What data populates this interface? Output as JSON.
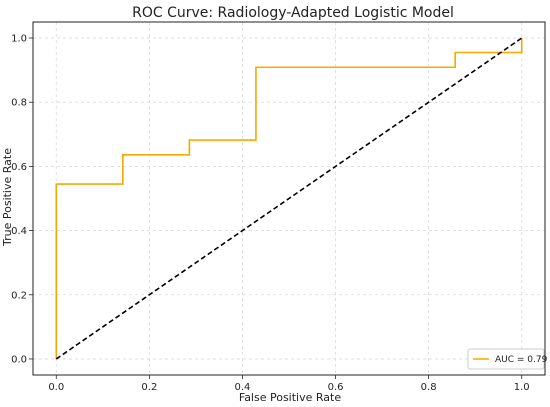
{
  "chart_data": {
    "type": "line",
    "title": "ROC Curve: Radiology-Adapted Logistic Model",
    "xlabel": "False Positive Rate",
    "ylabel": "True Positive Rate",
    "xlim": [
      -0.05,
      1.05
    ],
    "ylim": [
      -0.05,
      1.05
    ],
    "xticks": [
      0.0,
      0.2,
      0.4,
      0.6,
      0.8,
      1.0
    ],
    "yticks": [
      0.0,
      0.2,
      0.4,
      0.6,
      0.8,
      1.0
    ],
    "xtick_labels": [
      "0.0",
      "0.2",
      "0.4",
      "0.6",
      "0.8",
      "1.0"
    ],
    "ytick_labels": [
      "0.0",
      "0.2",
      "0.4",
      "0.6",
      "0.8",
      "1.0"
    ],
    "grid": true,
    "legend_position": "bottom-right",
    "series": [
      {
        "name": "AUC = 0.79",
        "color": "#f5a800",
        "style": "step",
        "x": [
          0.0,
          0.0,
          0.143,
          0.143,
          0.286,
          0.286,
          0.429,
          0.429,
          0.857,
          0.857,
          1.0,
          1.0
        ],
        "y": [
          0.0,
          0.545,
          0.545,
          0.636,
          0.636,
          0.682,
          0.682,
          0.909,
          0.909,
          0.955,
          0.955,
          1.0
        ]
      },
      {
        "color": "#000000",
        "style": "dashed",
        "x": [
          0.0,
          1.0
        ],
        "y": [
          0.0,
          1.0
        ]
      }
    ]
  }
}
